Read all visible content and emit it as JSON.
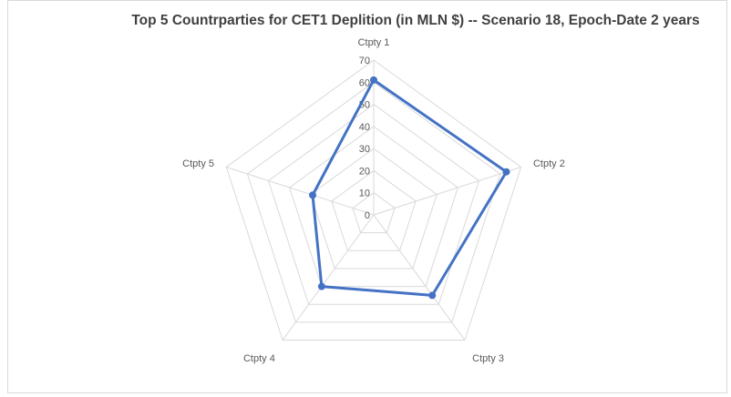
{
  "chart_data": {
    "type": "radar",
    "title": "Top 5 Countrparties for CET1 Deplition (in MLN $) -- Scenario 18,  Epoch-Date 2 years",
    "categories": [
      "Ctpty 1",
      "Ctpty 2",
      "Ctpty 3",
      "Ctpty 4",
      "Ctpty 5"
    ],
    "series": [
      {
        "values": [
          61,
          63,
          45,
          40,
          29
        ]
      }
    ],
    "rlim": [
      0,
      70
    ],
    "ticks": [
      0,
      10,
      20,
      30,
      40,
      50,
      60,
      70
    ],
    "tick_labels": [
      "0",
      "10",
      "20",
      "30",
      "40",
      "50",
      "60",
      "70"
    ],
    "grid": true,
    "legend": "none",
    "colors": {
      "series": "#4472c4",
      "grid": "#d9d9d9",
      "text": "#595959"
    }
  }
}
